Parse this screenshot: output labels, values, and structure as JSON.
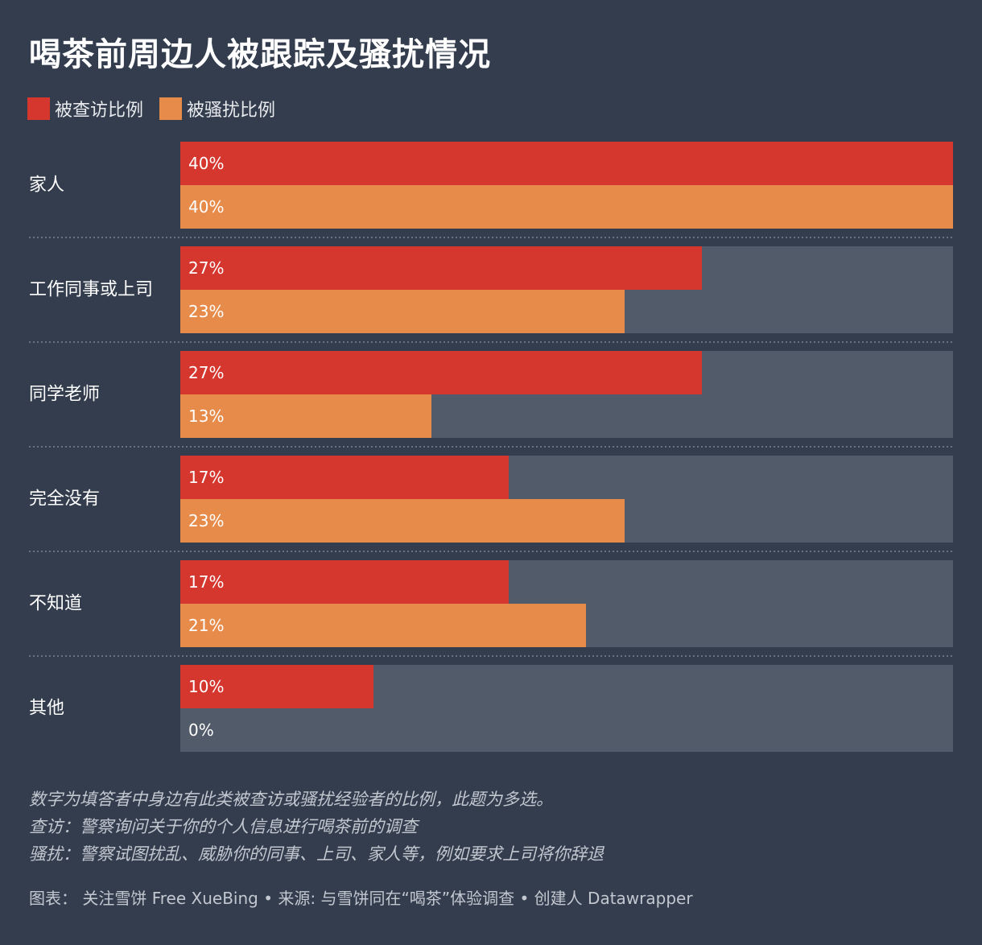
{
  "title": "喝茶前周边人被跟踪及骚扰情况",
  "colors": {
    "background": "#333d4e",
    "track": "#525b6a",
    "interviewed": "#d5372e",
    "harassed": "#e78b4a",
    "divider": "#6b7382"
  },
  "legend": [
    {
      "label": "被查访比例",
      "color": "#d5372e"
    },
    {
      "label": "被骚扰比例",
      "color": "#e78b4a"
    }
  ],
  "chart_data": {
    "type": "bar",
    "orientation": "horizontal",
    "grouped": true,
    "categories": [
      "家人",
      "工作同事或上司",
      "同学老师",
      "完全没有",
      "不知道",
      "其他"
    ],
    "series": [
      {
        "name": "被查访比例",
        "values": [
          40,
          27,
          27,
          17,
          17,
          10
        ],
        "labels": [
          "40%",
          "27%",
          "27%",
          "17%",
          "17%",
          "10%"
        ]
      },
      {
        "name": "被骚扰比例",
        "values": [
          40,
          23,
          13,
          23,
          21,
          0
        ],
        "labels": [
          "40%",
          "23%",
          "13%",
          "23%",
          "21%",
          "0%"
        ]
      }
    ],
    "xlim": [
      0,
      40
    ],
    "legend_position": "top-left",
    "grid": false
  },
  "notes": [
    "数字为填答者中身边有此类被查访或骚扰经验者的比例，此题为多选。",
    "查访：警察询问关于你的个人信息进行喝茶前的调查",
    "骚扰：警察试图扰乱、威胁你的同事、上司、家人等，例如要求上司将你辞退"
  ],
  "credits": "图表： 关注雪饼 Free XueBing • 来源: 与雪饼同在“喝茶”体验调查 • 创建人 Datawrapper"
}
